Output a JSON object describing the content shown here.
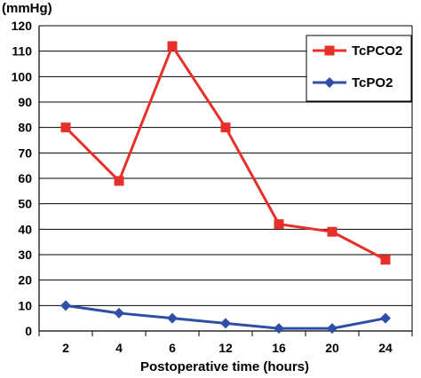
{
  "chart_data": {
    "type": "line",
    "unit_label": "(mmHg)",
    "xlabel": "Postoperative time (hours)",
    "categories": [
      "2",
      "4",
      "6",
      "12",
      "16",
      "20",
      "24"
    ],
    "ylim": [
      0,
      120
    ],
    "yticks": [
      0,
      10,
      20,
      30,
      40,
      50,
      60,
      70,
      80,
      90,
      100,
      110,
      120
    ],
    "grid": true,
    "legend_position": "top-right",
    "series": [
      {
        "name": "TcPCO2",
        "color": "#e8302a",
        "marker": "square",
        "values": [
          80,
          59,
          112,
          80,
          42,
          39,
          28
        ]
      },
      {
        "name": "TcPO2",
        "color": "#2f4fa6",
        "marker": "diamond",
        "values": [
          10,
          7,
          5,
          3,
          1,
          1,
          5
        ]
      }
    ]
  }
}
